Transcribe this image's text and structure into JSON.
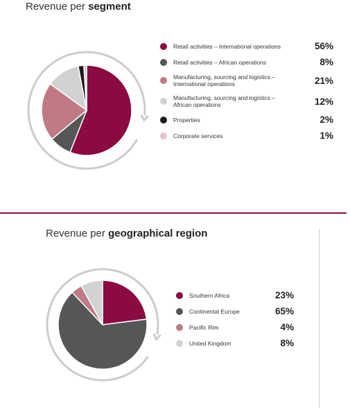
{
  "colors": {
    "maroon": "#8b0a42",
    "dark_grey": "#555657",
    "rose": "#c07a86",
    "light_grey": "#d2d2d2",
    "black": "#1b1b1b",
    "pale_pink": "#e6c3cb",
    "ring": "#cccccc"
  },
  "chart_data": [
    {
      "type": "pie",
      "title_prefix": "Revenue per ",
      "title_bold": "segment",
      "legend_position": "right",
      "slices": [
        {
          "label": "Retail activities – International operations",
          "value": 56,
          "display": "56%",
          "color": "#8b0a42"
        },
        {
          "label": "Retail activities – African operations",
          "value": 8,
          "display": "8%",
          "color": "#555657"
        },
        {
          "label": "Manufacturing, sourcing and logistics –",
          "label2": "International operations",
          "value": 21,
          "display": "21%",
          "color": "#c07a86"
        },
        {
          "label": "Manufacturing, sourcing and logistics –",
          "label2": "African operations",
          "value": 12,
          "display": "12%",
          "color": "#d2d2d2"
        },
        {
          "label": "Properties",
          "value": 2,
          "display": "2%",
          "color": "#1b1b1b"
        },
        {
          "label": "Corporate services",
          "value": 1,
          "display": "1%",
          "color": "#e6c3cb"
        }
      ]
    },
    {
      "type": "pie",
      "title_prefix": "Revenue per ",
      "title_bold": "geographical region",
      "legend_position": "right",
      "slices": [
        {
          "label": "Southern Africa",
          "value": 23,
          "display": "23%",
          "color": "#8b0a42"
        },
        {
          "label": "Continental Europe",
          "value": 65,
          "display": "65%",
          "color": "#555657"
        },
        {
          "label": "Pacific Rim",
          "value": 4,
          "display": "4%",
          "color": "#c07a86"
        },
        {
          "label": "United Kingdom",
          "value": 8,
          "display": "8%",
          "color": "#d2d2d2"
        }
      ]
    }
  ]
}
